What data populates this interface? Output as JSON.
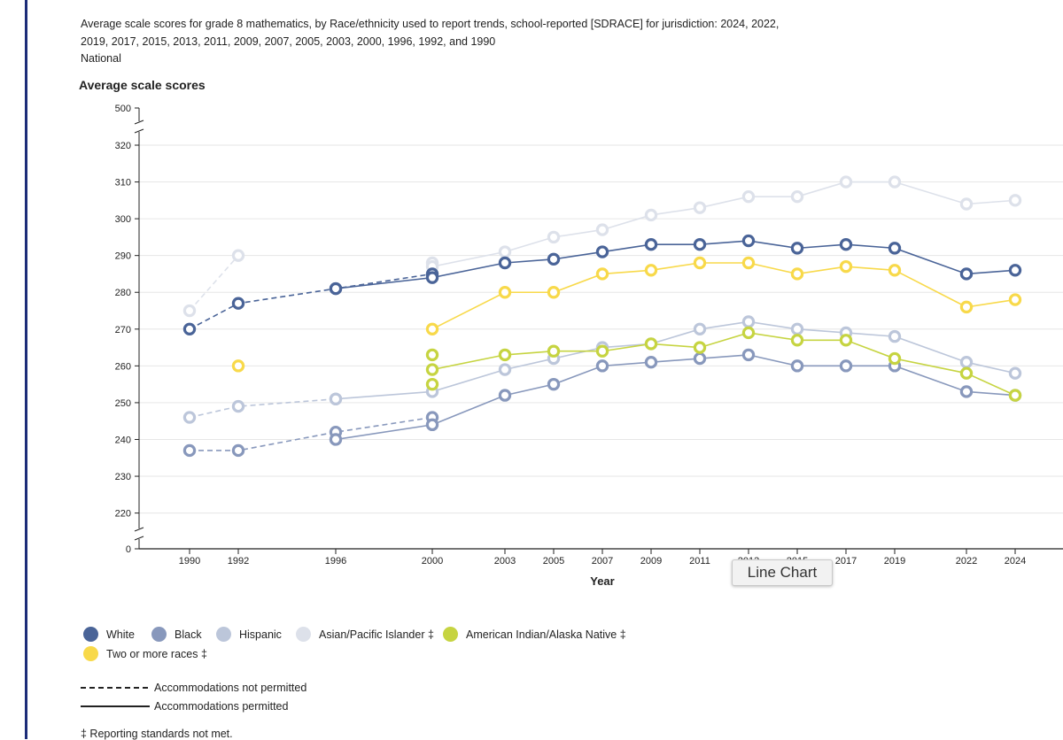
{
  "title_lines": [
    "Average scale scores for grade 8 mathematics, by Race/ethnicity used to report trends, school-reported [SDRACE] for jurisdiction: 2024, 2022,",
    "2019, 2017, 2015, 2013, 2011, 2009, 2007, 2005, 2003, 2000, 1996, 1992, and 1990",
    "National"
  ],
  "tooltip": "Line Chart",
  "footnote": "‡ Reporting standards not met.",
  "line_key": {
    "dashed": "Accommodations not permitted",
    "solid": "Accommodations permitted"
  },
  "chart_data": {
    "type": "line",
    "ylabel": "Average scale scores",
    "xlabel": "Year",
    "x": [
      1990,
      1992,
      1996,
      2000,
      2003,
      2005,
      2007,
      2009,
      2011,
      2013,
      2015,
      2017,
      2019,
      2022,
      2024
    ],
    "x_tick_labels": [
      "1990",
      "1992",
      "1996",
      "2000",
      "2003",
      "2005",
      "2007",
      "2009",
      "2011",
      "2013",
      "2015",
      "2017",
      "2019",
      "2022",
      "2024"
    ],
    "y_ticks": [
      0,
      220,
      230,
      240,
      250,
      260,
      270,
      280,
      290,
      300,
      310,
      320,
      500
    ],
    "y_axis_break": {
      "low": [
        0,
        220
      ],
      "high": [
        320,
        500
      ]
    },
    "ylim": [
      215,
      325
    ],
    "grid": "horizontal",
    "legend_position": "bottom",
    "series": [
      {
        "name": "White",
        "color": "#4a6498",
        "not_permitted": [
          [
            1990,
            270
          ],
          [
            1992,
            277
          ],
          [
            1996,
            281
          ],
          [
            2000,
            285
          ]
        ],
        "permitted": [
          [
            1996,
            281
          ],
          [
            2000,
            284
          ],
          [
            2003,
            288
          ],
          [
            2005,
            289
          ],
          [
            2007,
            291
          ],
          [
            2009,
            293
          ],
          [
            2011,
            293
          ],
          [
            2013,
            294
          ],
          [
            2015,
            292
          ],
          [
            2017,
            293
          ],
          [
            2019,
            292
          ],
          [
            2022,
            285
          ],
          [
            2024,
            286
          ]
        ]
      },
      {
        "name": "Black",
        "color": "#8898bc",
        "not_permitted": [
          [
            1990,
            237
          ],
          [
            1992,
            237
          ],
          [
            1996,
            242
          ],
          [
            2000,
            246
          ]
        ],
        "permitted": [
          [
            1996,
            240
          ],
          [
            2000,
            244
          ],
          [
            2003,
            252
          ],
          [
            2005,
            255
          ],
          [
            2007,
            260
          ],
          [
            2009,
            261
          ],
          [
            2011,
            262
          ],
          [
            2013,
            263
          ],
          [
            2015,
            260
          ],
          [
            2017,
            260
          ],
          [
            2019,
            260
          ],
          [
            2022,
            253
          ],
          [
            2024,
            252
          ]
        ]
      },
      {
        "name": "Hispanic",
        "color": "#bcc6da",
        "not_permitted": [
          [
            1990,
            246
          ],
          [
            1992,
            249
          ],
          [
            1996,
            251
          ]
        ],
        "permitted": [
          [
            1996,
            251
          ],
          [
            2000,
            253
          ],
          [
            2003,
            259
          ],
          [
            2005,
            262
          ],
          [
            2007,
            265
          ],
          [
            2009,
            266
          ],
          [
            2011,
            270
          ],
          [
            2013,
            272
          ],
          [
            2015,
            270
          ],
          [
            2017,
            269
          ],
          [
            2019,
            268
          ],
          [
            2022,
            261
          ],
          [
            2024,
            258
          ]
        ]
      },
      {
        "name": "Asian/Pacific Islander ‡",
        "color": "#dde1ea",
        "not_permitted": [
          [
            1990,
            275
          ],
          [
            1992,
            290
          ]
        ],
        "permitted": [
          [
            2000,
            288
          ],
          [
            2000,
            287
          ],
          [
            2003,
            291
          ],
          [
            2005,
            295
          ],
          [
            2007,
            297
          ],
          [
            2009,
            301
          ],
          [
            2011,
            303
          ],
          [
            2013,
            306
          ],
          [
            2015,
            306
          ],
          [
            2017,
            310
          ],
          [
            2019,
            310
          ],
          [
            2022,
            304
          ],
          [
            2024,
            305
          ]
        ]
      },
      {
        "name": "American Indian/Alaska Native ‡",
        "color": "#c6d441",
        "not_permitted": [
          [
            2000,
            263
          ]
        ],
        "permitted": [
          [
            2000,
            259
          ],
          [
            2003,
            263
          ],
          [
            2005,
            264
          ],
          [
            2007,
            264
          ],
          [
            2009,
            266
          ],
          [
            2011,
            265
          ],
          [
            2013,
            269
          ],
          [
            2015,
            267
          ],
          [
            2017,
            267
          ],
          [
            2019,
            262
          ],
          [
            2022,
            258
          ],
          [
            2024,
            252
          ]
        ],
        "extra_points": [
          [
            2000,
            255
          ]
        ]
      },
      {
        "name": "Two or more races ‡",
        "color": "#f8d94a",
        "not_permitted": [
          [
            1992,
            260
          ]
        ],
        "permitted": [
          [
            2000,
            270
          ],
          [
            2003,
            280
          ],
          [
            2005,
            280
          ],
          [
            2007,
            285
          ],
          [
            2009,
            286
          ],
          [
            2011,
            288
          ],
          [
            2013,
            288
          ],
          [
            2015,
            285
          ],
          [
            2017,
            287
          ],
          [
            2019,
            286
          ],
          [
            2022,
            276
          ],
          [
            2024,
            278
          ]
        ]
      }
    ]
  }
}
